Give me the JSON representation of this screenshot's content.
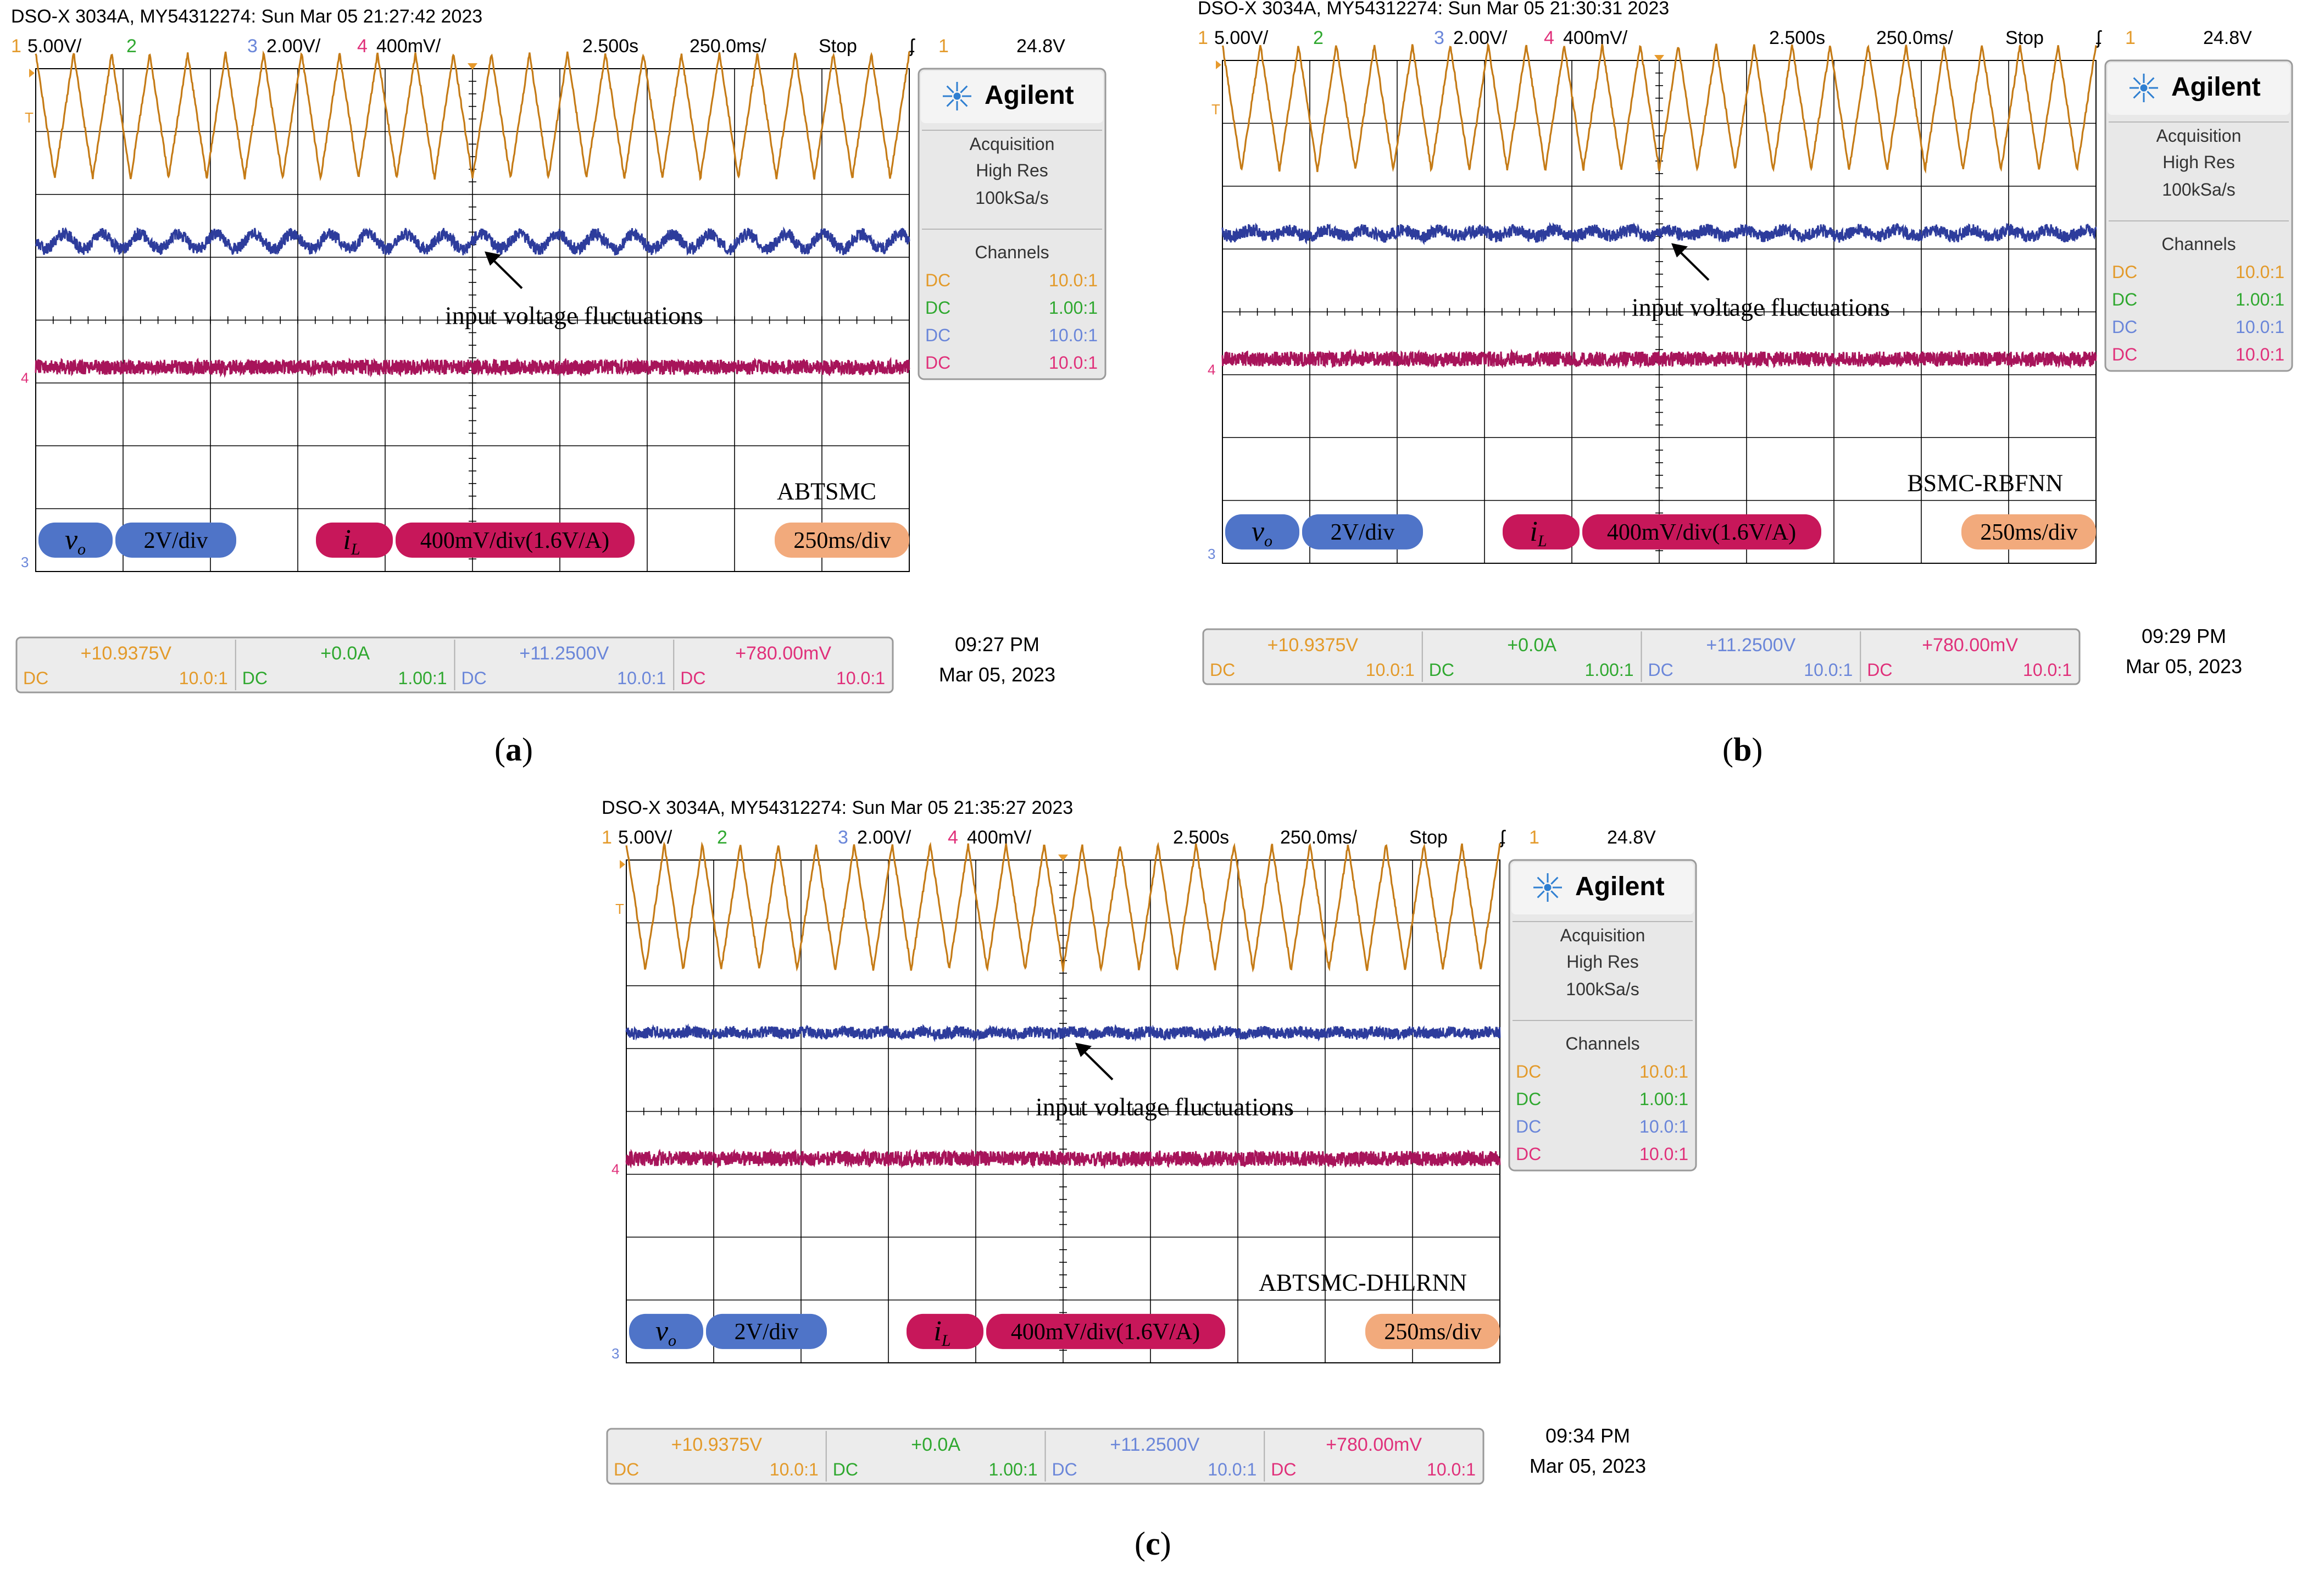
{
  "figure": {
    "colors": {
      "ch1": "#c57b16",
      "ch3": "#2d3c9c",
      "ch4": "#a7145a",
      "ch1_text": "#e39a2a",
      "ch2_text": "#2fa82f",
      "ch3_text": "#6a86d9",
      "ch4_text": "#e0307a",
      "grid": "#000000",
      "badge_blue": "#4f74c8",
      "badge_magenta": "#c7175a",
      "badge_orange": "#f2aa7c"
    },
    "panels": [
      {
        "caption_letter": "a",
        "header": "DSO-X 3034A, MY54312274: Sun Mar 05 21:27:42 2023",
        "ch1_num": "1",
        "ch1_scale": "5.00V/",
        "ch2_num": "2",
        "ch3_num": "3",
        "ch3_scale": "2.00V/",
        "ch4_num": "4",
        "ch4_scale": "400mV/",
        "time_pos": "2.500s",
        "time_scale": "250.0ms/",
        "run_state": "Stop",
        "trig_glyph": "ʄ",
        "trig_ch": "1",
        "trig_level": "24.8V",
        "brand": "Agilent",
        "acq_title": "Acquisition",
        "acq_mode": "High Res",
        "acq_rate": "100kSa/s",
        "channels_title": "Channels",
        "channel_rows": [
          {
            "coupling": "DC",
            "ratio": "10.0:1"
          },
          {
            "coupling": "DC",
            "ratio": "1.00:1"
          },
          {
            "coupling": "DC",
            "ratio": "10.0:1"
          },
          {
            "coupling": "DC",
            "ratio": "10.0:1"
          }
        ],
        "marker_t": "T",
        "marker_4": "4",
        "marker_3": "3",
        "annotation": "input voltage fluctuations",
        "method": "ABTSMC",
        "vo_main": "v",
        "vo_sub": "o",
        "vo_scale": "2V/div",
        "il_main": "i",
        "il_sub": "L",
        "il_scale": "400mV/div(1.6V/A)",
        "time_badge": "250ms/div",
        "meas": [
          {
            "value": "+10.9375V",
            "coupling": "DC",
            "ratio": "10.0:1"
          },
          {
            "value": "+0.0A",
            "coupling": "DC",
            "ratio": "1.00:1"
          },
          {
            "value": "+11.2500V",
            "coupling": "DC",
            "ratio": "10.0:1"
          },
          {
            "value": "+780.00mV",
            "coupling": "DC",
            "ratio": "10.0:1"
          }
        ],
        "clock_time": "09:27 PM",
        "clock_date": "Mar 05, 2023"
      },
      {
        "caption_letter": "b",
        "header": "DSO-X 3034A, MY54312274: Sun Mar 05 21:30:31 2023",
        "ch1_num": "1",
        "ch1_scale": "5.00V/",
        "ch2_num": "2",
        "ch3_num": "3",
        "ch3_scale": "2.00V/",
        "ch4_num": "4",
        "ch4_scale": "400mV/",
        "time_pos": "2.500s",
        "time_scale": "250.0ms/",
        "run_state": "Stop",
        "trig_glyph": "ʄ",
        "trig_ch": "1",
        "trig_level": "24.8V",
        "brand": "Agilent",
        "acq_title": "Acquisition",
        "acq_mode": "High Res",
        "acq_rate": "100kSa/s",
        "channels_title": "Channels",
        "channel_rows": [
          {
            "coupling": "DC",
            "ratio": "10.0:1"
          },
          {
            "coupling": "DC",
            "ratio": "1.00:1"
          },
          {
            "coupling": "DC",
            "ratio": "10.0:1"
          },
          {
            "coupling": "DC",
            "ratio": "10.0:1"
          }
        ],
        "marker_t": "T",
        "marker_4": "4",
        "marker_3": "3",
        "annotation": "input voltage fluctuations",
        "method": "BSMC-RBFNN",
        "vo_main": "v",
        "vo_sub": "o",
        "vo_scale": "2V/div",
        "il_main": "i",
        "il_sub": "L",
        "il_scale": "400mV/div(1.6V/A)",
        "time_badge": "250ms/div",
        "meas": [
          {
            "value": "+10.9375V",
            "coupling": "DC",
            "ratio": "10.0:1"
          },
          {
            "value": "+0.0A",
            "coupling": "DC",
            "ratio": "1.00:1"
          },
          {
            "value": "+11.2500V",
            "coupling": "DC",
            "ratio": "10.0:1"
          },
          {
            "value": "+780.00mV",
            "coupling": "DC",
            "ratio": "10.0:1"
          }
        ],
        "clock_time": "09:29 PM",
        "clock_date": "Mar 05, 2023"
      },
      {
        "caption_letter": "c",
        "header": "DSO-X 3034A, MY54312274: Sun Mar 05 21:35:27 2023",
        "ch1_num": "1",
        "ch1_scale": "5.00V/",
        "ch2_num": "2",
        "ch3_num": "3",
        "ch3_scale": "2.00V/",
        "ch4_num": "4",
        "ch4_scale": "400mV/",
        "time_pos": "2.500s",
        "time_scale": "250.0ms/",
        "run_state": "Stop",
        "trig_glyph": "ʄ",
        "trig_ch": "1",
        "trig_level": "24.8V",
        "brand": "Agilent",
        "acq_title": "Acquisition",
        "acq_mode": "High Res",
        "acq_rate": "100kSa/s",
        "channels_title": "Channels",
        "channel_rows": [
          {
            "coupling": "DC",
            "ratio": "10.0:1"
          },
          {
            "coupling": "DC",
            "ratio": "1.00:1"
          },
          {
            "coupling": "DC",
            "ratio": "10.0:1"
          },
          {
            "coupling": "DC",
            "ratio": "10.0:1"
          }
        ],
        "marker_t": "T",
        "marker_4": "4",
        "marker_3": "3",
        "annotation": "input voltage fluctuations",
        "method": "ABTSMC-DHLRNN",
        "vo_main": "v",
        "vo_sub": "o",
        "vo_scale": "2V/div",
        "il_main": "i",
        "il_sub": "L",
        "il_scale": "400mV/div(1.6V/A)",
        "time_badge": "250ms/div",
        "meas": [
          {
            "value": "+10.9375V",
            "coupling": "DC",
            "ratio": "10.0:1"
          },
          {
            "value": "+0.0A",
            "coupling": "DC",
            "ratio": "1.00:1"
          },
          {
            "value": "+11.2500V",
            "coupling": "DC",
            "ratio": "10.0:1"
          },
          {
            "value": "+780.00mV",
            "coupling": "DC",
            "ratio": "10.0:1"
          }
        ],
        "clock_time": "09:34 PM",
        "clock_date": "Mar 05, 2023"
      }
    ]
  },
  "chart_data": [
    {
      "type": "line",
      "title": "ABTSMC",
      "x_unit": "ms",
      "x_range": [
        0,
        2500
      ],
      "x_div": 250,
      "series": [
        {
          "name": "Ch1 triangle reference",
          "scale": "5.00V/div",
          "shape": "triangle",
          "cycles": 23,
          "amplitude_div": 1.0,
          "noise_div": 0.03
        },
        {
          "name": "v_o (Ch3)",
          "scale": "2V/div",
          "shape": "noise",
          "mean_div": 0.0,
          "ripple_div": 0.12,
          "ripple_cycles": 23,
          "noise_div": 0.1
        },
        {
          "name": "i_L (Ch4)",
          "scale": "400mV/div(1.6V/A)",
          "shape": "noise",
          "mean_div": 0.0,
          "ripple_div": 0.0,
          "ripple_cycles": 0,
          "noise_div": 0.12
        }
      ]
    },
    {
      "type": "line",
      "title": "BSMC-RBFNN",
      "x_unit": "ms",
      "x_range": [
        0,
        2500
      ],
      "x_div": 250,
      "series": [
        {
          "name": "Ch1 triangle reference",
          "scale": "5.00V/div",
          "shape": "triangle",
          "cycles": 23,
          "amplitude_div": 1.0,
          "noise_div": 0.03
        },
        {
          "name": "v_o (Ch3)",
          "scale": "2V/div",
          "shape": "noise",
          "mean_div": 0.0,
          "ripple_div": 0.05,
          "ripple_cycles": 23,
          "noise_div": 0.1
        },
        {
          "name": "i_L (Ch4)",
          "scale": "400mV/div(1.6V/A)",
          "shape": "noise",
          "mean_div": 0.0,
          "ripple_div": 0.0,
          "ripple_cycles": 0,
          "noise_div": 0.12
        }
      ]
    },
    {
      "type": "line",
      "title": "ABTSMC-DHLRNN",
      "x_unit": "ms",
      "x_range": [
        0,
        2500
      ],
      "x_div": 250,
      "series": [
        {
          "name": "Ch1 triangle reference",
          "scale": "5.00V/div",
          "shape": "triangle",
          "cycles": 23,
          "amplitude_div": 1.0,
          "noise_div": 0.03
        },
        {
          "name": "v_o (Ch3)",
          "scale": "2V/div",
          "shape": "noise",
          "mean_div": 0.0,
          "ripple_div": 0.02,
          "ripple_cycles": 23,
          "noise_div": 0.09
        },
        {
          "name": "i_L (Ch4)",
          "scale": "400mV/div(1.6V/A)",
          "shape": "noise",
          "mean_div": 0.0,
          "ripple_div": 0.0,
          "ripple_cycles": 0,
          "noise_div": 0.12
        }
      ]
    }
  ]
}
